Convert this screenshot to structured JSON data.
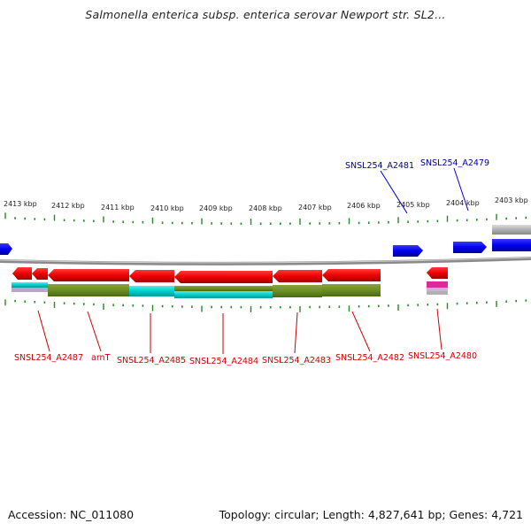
{
  "title": "Salmonella enterica subsp. enterica serovar Newport str. SL2...",
  "footer": {
    "accession": "Accession: NC_011080",
    "topology": "Topology: circular; Length: 4,827,641 bp; Genes: 4,721"
  },
  "colors": {
    "forward_gene": "#0000ee",
    "reverse_gene": "#ee0000",
    "ruler_tick": "#228b22",
    "backbone": "#888888",
    "forward_label": "#00008b",
    "reverse_label": "#cc0000"
  },
  "ruler": {
    "unit": "kbp",
    "ticks": [
      {
        "label": "2413 kbp"
      },
      {
        "label": "2412 kbp"
      },
      {
        "label": "2411 kbp"
      },
      {
        "label": "2410 kbp"
      },
      {
        "label": "2409 kbp"
      },
      {
        "label": "2408 kbp"
      },
      {
        "label": "2407 kbp"
      },
      {
        "label": "2406 kbp"
      },
      {
        "label": "2405 kbp"
      },
      {
        "label": "2404 kbp"
      },
      {
        "label": "2403 kbp"
      }
    ]
  },
  "gene_labels": {
    "forward": [
      "SNSL254_A2481",
      "SNSL254_A2479"
    ],
    "reverse": [
      "SNSL254_A2487",
      "arnT",
      "SNSL254_A2485",
      "SNSL254_A2484",
      "SNSL254_A2483",
      "SNSL254_A2482",
      "SNSL254_A2480"
    ]
  }
}
